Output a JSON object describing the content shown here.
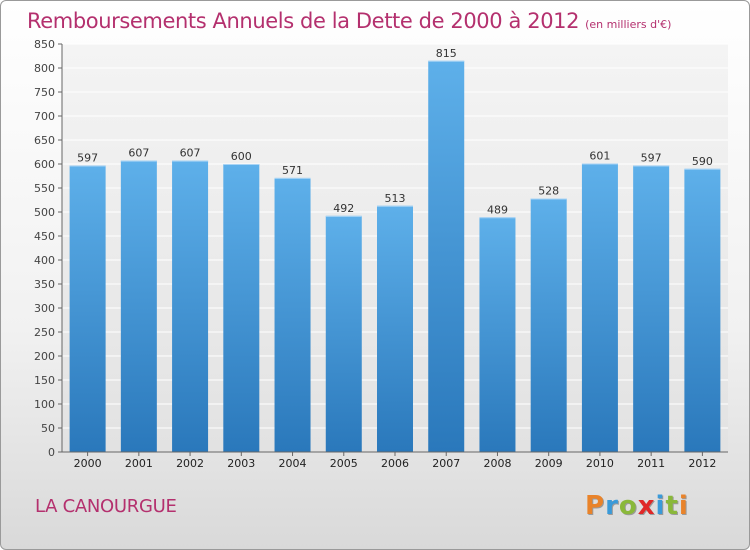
{
  "title": "Remboursements Annuels de la Dette de 2000 à 2012",
  "subtitle": "(en milliers d'€)",
  "commune": "LA CANOURGUE",
  "brand": {
    "letters": [
      "P",
      "r",
      "o",
      "x",
      "i",
      "t",
      "i"
    ],
    "colors": [
      "#e9832a",
      "#3a9ad9",
      "#8ab83a",
      "#e02727",
      "#3a9ad9",
      "#8ab83a",
      "#e9832a"
    ]
  },
  "colors": {
    "bar_top": "#5eb0ea",
    "bar_bottom": "#2a78bb",
    "title": "#b4306e"
  },
  "chart_data": {
    "type": "bar",
    "categories": [
      "2000",
      "2001",
      "2002",
      "2003",
      "2004",
      "2005",
      "2006",
      "2007",
      "2008",
      "2009",
      "2010",
      "2011",
      "2012"
    ],
    "values": [
      597,
      607,
      607,
      600,
      571,
      492,
      513,
      815,
      489,
      528,
      601,
      597,
      590
    ],
    "ylim": [
      0,
      850
    ],
    "yticks": [
      0,
      50,
      100,
      150,
      200,
      250,
      300,
      350,
      400,
      450,
      500,
      550,
      600,
      650,
      700,
      750,
      800,
      850
    ],
    "grid": true,
    "xlabel": "",
    "ylabel": ""
  }
}
